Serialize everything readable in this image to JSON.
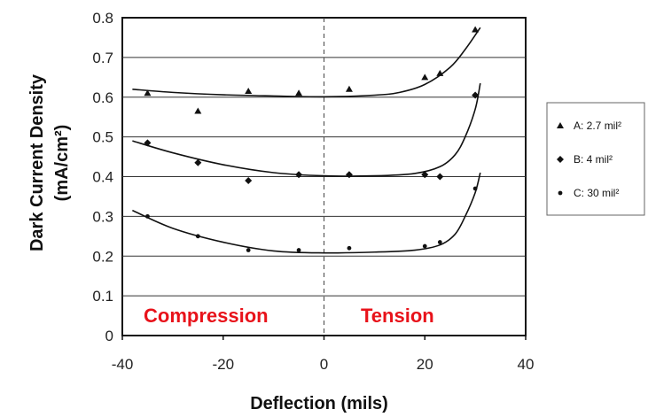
{
  "chart_data": {
    "type": "scatter",
    "title": "",
    "xlabel": "Deflection (mils)",
    "ylabel_line1": "Dark Current Density",
    "ylabel_line2": "(mA/cm²)",
    "xlim": [
      -40,
      40
    ],
    "ylim": [
      0,
      0.8
    ],
    "x_ticks": [
      "-40",
      "-20",
      "0",
      "20",
      "40"
    ],
    "y_ticks": [
      "0",
      "0.1",
      "0.2",
      "0.3",
      "0.4",
      "0.5",
      "0.6",
      "0.7",
      "0.8"
    ],
    "grid": "horizontal",
    "legend_position": "right",
    "annotations": [
      {
        "text": "Compression",
        "color": "#e8121a"
      },
      {
        "text": "Tension",
        "color": "#e8121a"
      }
    ],
    "zero_line": "dashed vertical at x=0",
    "series": [
      {
        "name": "A: 2.7 mil²",
        "marker": "triangle",
        "points": [
          [
            -35,
            0.61
          ],
          [
            -25,
            0.565
          ],
          [
            -15,
            0.615
          ],
          [
            -5,
            0.61
          ],
          [
            5,
            0.62
          ],
          [
            20,
            0.65
          ],
          [
            23,
            0.66
          ],
          [
            30,
            0.77
          ]
        ],
        "curve": [
          [
            -38,
            0.62
          ],
          [
            -30,
            0.612
          ],
          [
            -20,
            0.606
          ],
          [
            -10,
            0.603
          ],
          [
            0,
            0.601
          ],
          [
            10,
            0.605
          ],
          [
            15,
            0.612
          ],
          [
            20,
            0.632
          ],
          [
            25,
            0.675
          ],
          [
            28,
            0.72
          ],
          [
            31,
            0.775
          ]
        ]
      },
      {
        "name": "B:  4 mil²",
        "marker": "diamond",
        "points": [
          [
            -35,
            0.485
          ],
          [
            -25,
            0.435
          ],
          [
            -15,
            0.39
          ],
          [
            -5,
            0.405
          ],
          [
            5,
            0.405
          ],
          [
            20,
            0.405
          ],
          [
            23,
            0.4
          ],
          [
            30,
            0.605
          ]
        ],
        "curve": [
          [
            -38,
            0.49
          ],
          [
            -30,
            0.46
          ],
          [
            -20,
            0.43
          ],
          [
            -10,
            0.41
          ],
          [
            0,
            0.402
          ],
          [
            10,
            0.402
          ],
          [
            18,
            0.408
          ],
          [
            23,
            0.425
          ],
          [
            26,
            0.455
          ],
          [
            28,
            0.5
          ],
          [
            30,
            0.57
          ],
          [
            31,
            0.635
          ]
        ]
      },
      {
        "name": "C: 30 mil²",
        "marker": "dot",
        "points": [
          [
            -35,
            0.3
          ],
          [
            -25,
            0.25
          ],
          [
            -15,
            0.215
          ],
          [
            -5,
            0.215
          ],
          [
            5,
            0.22
          ],
          [
            20,
            0.225
          ],
          [
            23,
            0.235
          ],
          [
            30,
            0.37
          ]
        ],
        "curve": [
          [
            -38,
            0.315
          ],
          [
            -30,
            0.27
          ],
          [
            -20,
            0.235
          ],
          [
            -10,
            0.213
          ],
          [
            0,
            0.208
          ],
          [
            10,
            0.21
          ],
          [
            18,
            0.215
          ],
          [
            23,
            0.228
          ],
          [
            26,
            0.255
          ],
          [
            28,
            0.3
          ],
          [
            30,
            0.36
          ],
          [
            31,
            0.41
          ]
        ]
      }
    ]
  }
}
